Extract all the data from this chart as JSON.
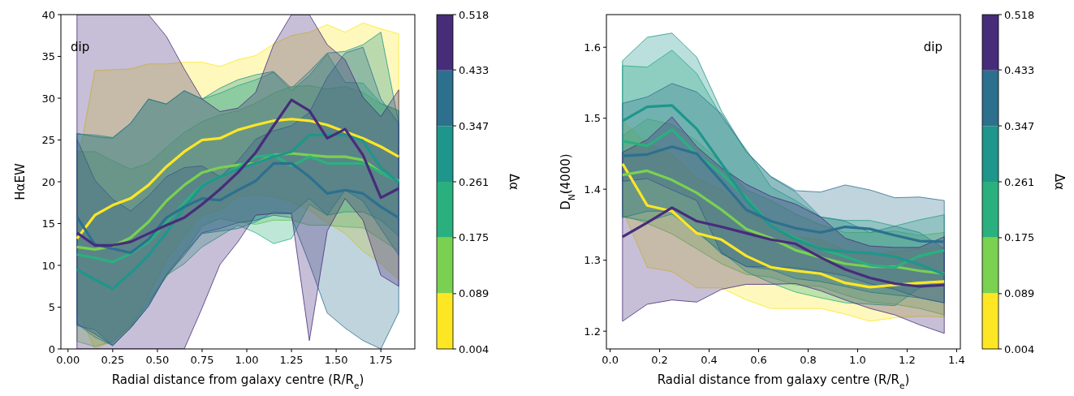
{
  "chart_data": [
    {
      "type": "line",
      "ylabel": "HαEW",
      "xlabel": "Radial distance from galaxy centre (R/R$_{e}$)",
      "clabel": "Δα",
      "annotations": [
        "dip"
      ],
      "x": [
        0.05,
        0.15,
        0.25,
        0.35,
        0.45,
        0.55,
        0.65,
        0.75,
        0.85,
        0.95,
        1.05,
        1.15,
        1.25,
        1.35,
        1.45,
        1.55,
        1.65,
        1.75,
        1.85
      ],
      "xlim": [
        -0.04,
        1.94
      ],
      "xticks": [
        {
          "value": 0,
          "label": "0.00"
        },
        {
          "value": 0.25,
          "label": "0.25"
        },
        {
          "value": 0.5,
          "label": "0.50"
        },
        {
          "value": 0.75,
          "label": "0.75"
        },
        {
          "value": 1,
          "label": "1.00"
        },
        {
          "value": 1.25,
          "label": "1.25"
        },
        {
          "value": 1.5,
          "label": "1.50"
        },
        {
          "value": 1.75,
          "label": "1.75"
        }
      ],
      "ylim": [
        0,
        40
      ],
      "yticks": [
        0,
        5,
        10,
        15,
        20,
        25,
        30,
        35,
        40
      ],
      "clim": [
        0.004,
        0.518
      ],
      "cticks": [
        0.004,
        0.089,
        0.175,
        0.261,
        0.347,
        0.433,
        0.518
      ],
      "series": [
        {
          "color": "#fde725",
          "values": [
            13.2,
            16.0,
            17.2,
            18.0,
            19.6,
            21.8,
            23.6,
            25.0,
            25.2,
            26.2,
            26.8,
            27.3,
            27.5,
            27.3,
            26.8,
            26.0,
            25.2,
            24.2,
            23.0
          ],
          "upper": [
            21.7,
            33.3,
            33.4,
            33.5,
            34.1,
            34.1,
            34.3,
            34.3,
            33.8,
            34.6,
            35.1,
            36.5,
            37.5,
            37.9,
            38.8,
            37.9,
            39.0,
            38.3,
            37.7
          ],
          "lower": [
            4.9,
            0,
            0.9,
            2.5,
            6.4,
            10.6,
            13.5,
            16.0,
            16.6,
            18.2,
            18.5,
            18.2,
            17.6,
            16.6,
            15.1,
            13.8,
            11.7,
            10.2,
            8.3
          ]
        },
        {
          "color": "#7ad151",
          "values": [
            12.2,
            11.9,
            12.3,
            13.3,
            15.2,
            17.7,
            19.6,
            21.1,
            21.7,
            22.0,
            22.2,
            23.2,
            23.4,
            23.2,
            23.0,
            23.0,
            22.6,
            21.1,
            20.1
          ],
          "upper": [
            23.6,
            23.6,
            22.5,
            21.5,
            22.2,
            24.1,
            25.9,
            27.2,
            28.0,
            28.5,
            29.4,
            30.6,
            31.4,
            31.5,
            31.1,
            31.4,
            30.7,
            29.3,
            28.5
          ],
          "lower": [
            0.9,
            0.3,
            0.9,
            2.8,
            5.7,
            8.6,
            11.5,
            14.7,
            15.6,
            15.2,
            14.9,
            15.4,
            15.4,
            14.8,
            14.8,
            14.6,
            14.5,
            13.1,
            11.7
          ]
        },
        {
          "color": "#2ab07f",
          "values": [
            11.3,
            10.9,
            10.4,
            11.4,
            12.8,
            15.1,
            17.5,
            19.6,
            20.6,
            21.7,
            23.0,
            23.2,
            21.9,
            23.0,
            22.2,
            22.2,
            22.2,
            21.1,
            20.0
          ],
          "upper": [
            25.7,
            25.6,
            25.3,
            27.0,
            29.9,
            29.3,
            30.9,
            29.9,
            30.6,
            31.5,
            32.2,
            33.1,
            30.9,
            32.7,
            35.3,
            31.9,
            31.8,
            29.4,
            28.5
          ],
          "lower": [
            3.0,
            1.4,
            0.4,
            2.5,
            5.4,
            8.8,
            10.2,
            12.2,
            13.5,
            14.8,
            13.9,
            12.6,
            13.2,
            17.3,
            16.0,
            16.4,
            16.4,
            15.4,
            13.5
          ]
        },
        {
          "color": "#1f968b",
          "values": [
            9.5,
            8.3,
            7.2,
            9.1,
            11.2,
            13.9,
            16.9,
            19.5,
            20.6,
            21.5,
            22.2,
            23.0,
            23.6,
            25.6,
            25.6,
            25.6,
            24.9,
            21.7,
            19.9
          ],
          "upper": [
            25.8,
            25.4,
            25.2,
            27.0,
            29.9,
            29.3,
            30.9,
            29.9,
            31.2,
            32.2,
            32.8,
            33.2,
            31.2,
            33.2,
            35.4,
            35.6,
            36.4,
            37.9,
            27.0
          ],
          "lower": [
            2.8,
            2.3,
            0.4,
            2.5,
            5.1,
            8.9,
            11.5,
            13.8,
            14.1,
            14.4,
            15.2,
            16.4,
            16.2,
            18.0,
            16.0,
            19.0,
            17.7,
            14.4,
            11.2
          ]
        },
        {
          "color": "#2d708e",
          "values": [
            15.8,
            12.5,
            12.0,
            11.5,
            13.1,
            15.7,
            17.0,
            18.0,
            17.8,
            19.0,
            20.1,
            22.2,
            22.2,
            20.6,
            18.6,
            19.0,
            18.6,
            17.0,
            15.7
          ],
          "upper": [
            25.1,
            20.2,
            17.9,
            16.5,
            18.3,
            20.6,
            21.7,
            21.9,
            20.6,
            22.5,
            25.1,
            26.1,
            26.7,
            28.3,
            32.5,
            35.4,
            36.1,
            29.9,
            27.0
          ],
          "lower": [
            3.0,
            1.8,
            0.4,
            2.5,
            5.1,
            8.8,
            11.2,
            13.9,
            14.4,
            15.1,
            15.4,
            16.0,
            15.7,
            10.2,
            4.3,
            2.5,
            1.0,
            0,
            4.4
          ]
        },
        {
          "color": "#472c7a",
          "values": [
            13.9,
            12.4,
            12.4,
            12.8,
            13.8,
            14.8,
            15.7,
            17.3,
            19.1,
            21.1,
            23.5,
            26.7,
            29.8,
            28.5,
            25.2,
            26.3,
            23.2,
            18.1,
            19.2
          ],
          "upper": [
            40,
            40,
            40,
            40,
            40,
            37.4,
            33.5,
            29.9,
            28.4,
            28.8,
            30.7,
            36.4,
            40,
            40,
            36.4,
            34.6,
            30.1,
            27.8,
            31.0
          ],
          "lower": [
            0,
            0,
            0,
            0,
            0,
            0,
            0,
            4.9,
            10.1,
            12.8,
            16.0,
            16.2,
            16.2,
            1.0,
            14.1,
            18.0,
            15.4,
            8.8,
            7.5
          ]
        }
      ]
    },
    {
      "type": "line",
      "ylabel": "D$_{N}$(4000)",
      "xlabel": "Radial distance from galaxy centre (R/R$_{e}$)",
      "clabel": "Δα",
      "annotations": [
        "dip"
      ],
      "x": [
        0.05,
        0.15,
        0.25,
        0.35,
        0.45,
        0.55,
        0.65,
        0.75,
        0.85,
        0.95,
        1.05,
        1.15,
        1.25,
        1.35
      ],
      "xlim": [
        -0.015,
        1.415
      ],
      "xticks": [
        {
          "value": 0,
          "label": "0.0"
        },
        {
          "value": 0.2,
          "label": "0.2"
        },
        {
          "value": 0.4,
          "label": "0.4"
        },
        {
          "value": 0.6,
          "label": "0.6"
        },
        {
          "value": 0.8,
          "label": "0.8"
        },
        {
          "value": 1,
          "label": "1.0"
        },
        {
          "value": 1.2,
          "label": "1.2"
        },
        {
          "value": 1.4,
          "label": "1.4"
        }
      ],
      "ylim": [
        1.175,
        1.646
      ],
      "yticks": [
        1.2,
        1.3,
        1.4,
        1.5,
        1.6
      ],
      "clim": [
        0.004,
        0.518
      ],
      "cticks": [
        0.004,
        0.089,
        0.175,
        0.261,
        0.347,
        0.433,
        0.518
      ],
      "series": [
        {
          "color": "#fde725",
          "values": [
            1.436,
            1.377,
            1.369,
            1.338,
            1.329,
            1.306,
            1.29,
            1.285,
            1.281,
            1.268,
            1.262,
            1.265,
            1.268,
            1.27
          ],
          "upper": [
            1.496,
            1.464,
            1.449,
            1.415,
            1.399,
            1.369,
            1.35,
            1.333,
            1.329,
            1.314,
            1.308,
            1.312,
            1.316,
            1.318
          ],
          "lower": [
            1.371,
            1.29,
            1.284,
            1.261,
            1.261,
            1.244,
            1.232,
            1.232,
            1.232,
            1.224,
            1.214,
            1.219,
            1.221,
            1.22
          ]
        },
        {
          "color": "#7ad151",
          "values": [
            1.42,
            1.426,
            1.413,
            1.395,
            1.371,
            1.344,
            1.331,
            1.314,
            1.304,
            1.295,
            1.291,
            1.291,
            1.285,
            1.281
          ],
          "upper": [
            1.475,
            1.499,
            1.491,
            1.468,
            1.437,
            1.399,
            1.384,
            1.365,
            1.35,
            1.339,
            1.339,
            1.341,
            1.335,
            1.339
          ],
          "lower": [
            1.363,
            1.352,
            1.337,
            1.316,
            1.295,
            1.28,
            1.276,
            1.265,
            1.263,
            1.251,
            1.241,
            1.238,
            1.232,
            1.223
          ]
        },
        {
          "color": "#2ab07f",
          "values": [
            1.468,
            1.461,
            1.484,
            1.449,
            1.422,
            1.388,
            1.348,
            1.331,
            1.316,
            1.305,
            1.293,
            1.29,
            1.306,
            1.314
          ],
          "upper": [
            1.574,
            1.572,
            1.596,
            1.563,
            1.502,
            1.456,
            1.403,
            1.384,
            1.361,
            1.356,
            1.356,
            1.348,
            1.357,
            1.364
          ],
          "lower": [
            1.361,
            1.355,
            1.365,
            1.339,
            1.312,
            1.284,
            1.268,
            1.255,
            1.247,
            1.24,
            1.238,
            1.236,
            1.261,
            1.272
          ]
        },
        {
          "color": "#1f968b",
          "values": [
            1.496,
            1.516,
            1.518,
            1.485,
            1.436,
            1.384,
            1.348,
            1.329,
            1.316,
            1.312,
            1.31,
            1.305,
            1.294,
            1.28
          ],
          "upper": [
            1.581,
            1.614,
            1.62,
            1.586,
            1.51,
            1.453,
            1.417,
            1.396,
            1.361,
            1.355,
            1.339,
            1.348,
            1.339,
            1.316
          ],
          "lower": [
            1.36,
            1.369,
            1.369,
            1.342,
            1.309,
            1.291,
            1.287,
            1.274,
            1.27,
            1.263,
            1.255,
            1.251,
            1.247,
            1.24
          ]
        },
        {
          "color": "#2d708e",
          "values": [
            1.447,
            1.449,
            1.46,
            1.45,
            1.411,
            1.371,
            1.355,
            1.345,
            1.339,
            1.347,
            1.344,
            1.335,
            1.327,
            1.326
          ],
          "upper": [
            1.521,
            1.53,
            1.549,
            1.537,
            1.506,
            1.453,
            1.418,
            1.398,
            1.396,
            1.406,
            1.399,
            1.388,
            1.389,
            1.384
          ],
          "lower": [
            1.411,
            1.415,
            1.399,
            1.384,
            1.31,
            1.291,
            1.291,
            1.289,
            1.284,
            1.278,
            1.267,
            1.259,
            1.247,
            1.24
          ]
        },
        {
          "color": "#472c7a",
          "values": [
            1.333,
            1.353,
            1.374,
            1.355,
            1.347,
            1.338,
            1.329,
            1.323,
            1.304,
            1.287,
            1.275,
            1.267,
            1.263,
            1.265
          ],
          "upper": [
            1.452,
            1.47,
            1.502,
            1.46,
            1.43,
            1.407,
            1.39,
            1.379,
            1.361,
            1.331,
            1.32,
            1.318,
            1.318,
            1.333
          ],
          "lower": [
            1.214,
            1.238,
            1.244,
            1.241,
            1.259,
            1.266,
            1.266,
            1.267,
            1.257,
            1.244,
            1.232,
            1.223,
            1.209,
            1.197
          ]
        }
      ]
    }
  ]
}
